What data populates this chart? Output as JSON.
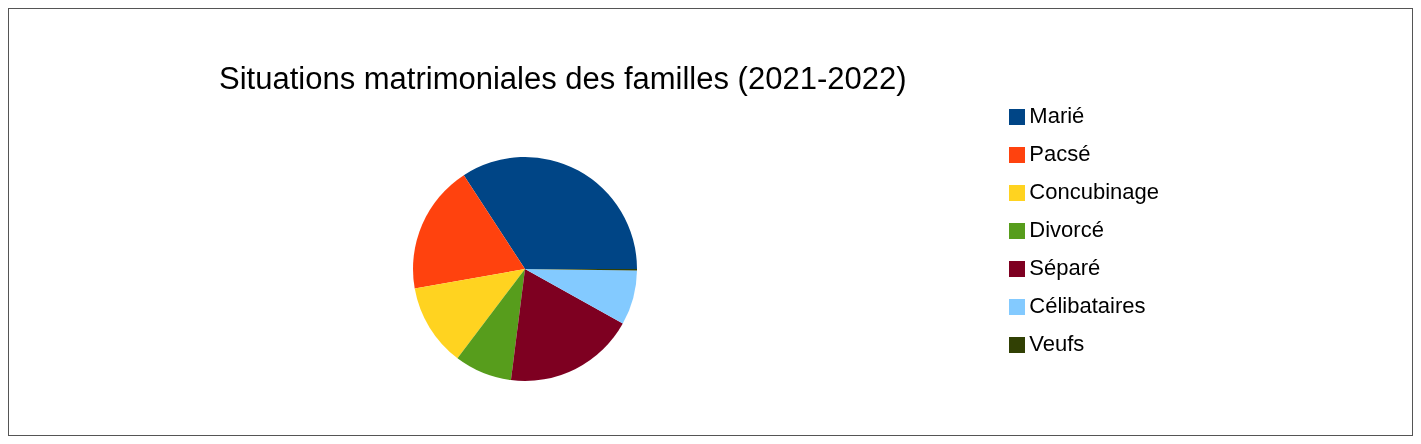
{
  "chart_data": {
    "type": "pie",
    "title": "Situations matrimoniales des familles (2021-2022)",
    "categories": [
      "Marié",
      "Pacsé",
      "Concubinage",
      "Divorcé",
      "Séparé",
      "Célibataires",
      "Veufs"
    ],
    "values": [
      34.2,
      18.6,
      11.9,
      8.3,
      18.9,
      7.9,
      0.2
    ],
    "colors": [
      "#004586",
      "#ff420e",
      "#ffd320",
      "#579d1c",
      "#7e0021",
      "#83caff",
      "#314004"
    ],
    "legend": "right"
  }
}
